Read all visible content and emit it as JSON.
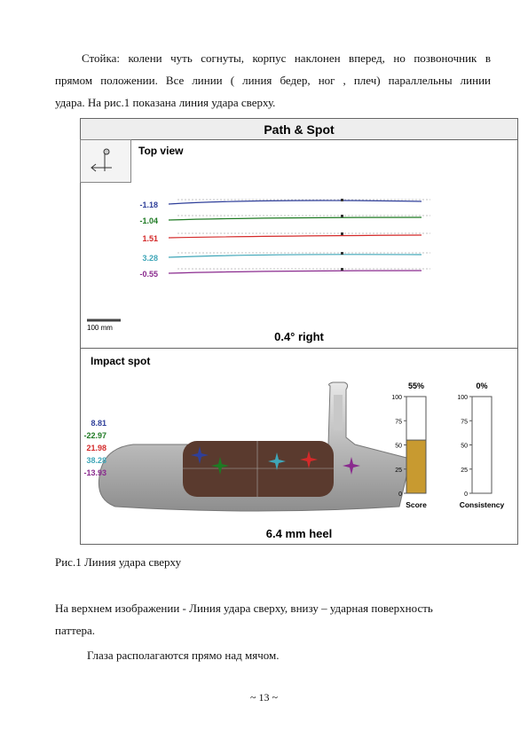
{
  "paragraph1": {
    "lines": [
      "Стойка: колени чуть согнуты, корпус наклонен вперед, но позвоночник в",
      "прямом положении.  Все линии ( линия бедер, ног , плеч) параллельны линии",
      "удара. На рис.1  показана линия удара сверху."
    ]
  },
  "figure": {
    "title": "Path & Spot",
    "top_view": {
      "title": "Top view",
      "rows": [
        {
          "label": "-1.18",
          "color": "#2f3f9a"
        },
        {
          "label": "-1.04",
          "color": "#1e7a23"
        },
        {
          "label": "1.51",
          "color": "#d42a2a"
        },
        {
          "label": "3.28",
          "color": "#3fa6b8"
        },
        {
          "label": "-0.55",
          "color": "#8a2a8e"
        }
      ],
      "scale_label": "100 mm",
      "result": "0.4° right"
    },
    "impact": {
      "title": "Impact spot",
      "rows": [
        {
          "label": "8.81",
          "color": "#2f3f9a"
        },
        {
          "label": "-22.97",
          "color": "#1e7a23"
        },
        {
          "label": "21.98",
          "color": "#d42a2a"
        },
        {
          "label": "38.28",
          "color": "#3fa6b8"
        },
        {
          "label": "-13.93",
          "color": "#8a2a8e"
        }
      ],
      "gauges": [
        {
          "name": "Score",
          "value": 55,
          "value_label": "55%",
          "color": "#c89a30"
        },
        {
          "name": "Consistency",
          "value": 0,
          "value_label": "0%",
          "color": "#c89a30"
        }
      ],
      "ylim": [
        0,
        100
      ],
      "yticks": [
        0,
        25,
        50,
        75,
        100
      ],
      "result": "6.4 mm heel"
    }
  },
  "caption": "Рис.1 Линия удара сверху",
  "paragraph2": {
    "lines": [
      "На верхнем изображении - Линия удара сверху, внизу – ударная поверхность",
      "паттера."
    ]
  },
  "paragraph3": "Глаза располагаются прямо над мячом.",
  "page_number": "~ 13 ~"
}
